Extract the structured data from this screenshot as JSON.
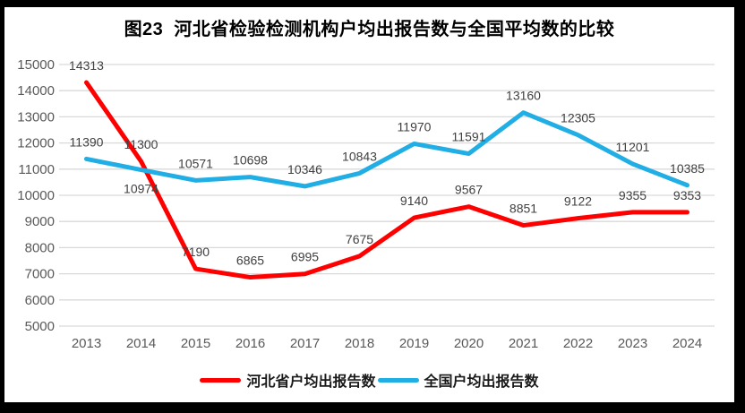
{
  "chart_data": {
    "type": "line",
    "title": "图23  河北省检验检测机构户均出报告数与全国平均数的比较",
    "categories": [
      "2013",
      "2014",
      "2015",
      "2016",
      "2017",
      "2018",
      "2019",
      "2020",
      "2021",
      "2022",
      "2023",
      "2024"
    ],
    "series": [
      {
        "name": "河北省户均出报告数",
        "color": "#FE0000",
        "values": [
          14313,
          11300,
          7190,
          6865,
          6995,
          7675,
          9140,
          9567,
          8851,
          9122,
          9355,
          9353
        ],
        "label_below_indices": []
      },
      {
        "name": "全国户均出报告数",
        "color": "#21AEE5",
        "values": [
          11390,
          10974,
          10571,
          10698,
          10346,
          10843,
          11970,
          11591,
          13160,
          12305,
          11201,
          10385
        ],
        "label_below_indices": [
          1
        ]
      }
    ],
    "ylim": [
      5000,
      15000
    ],
    "ytick_step": 1000,
    "grid": true,
    "data_labels": true,
    "legend_position": "bottom",
    "colors": {
      "grid": "#D9D9D9",
      "tick_text": "#595959",
      "data_label_text": "#404040",
      "title_text": "#000000",
      "plot_bg": "#FFFFFF",
      "border": "#000000"
    }
  }
}
